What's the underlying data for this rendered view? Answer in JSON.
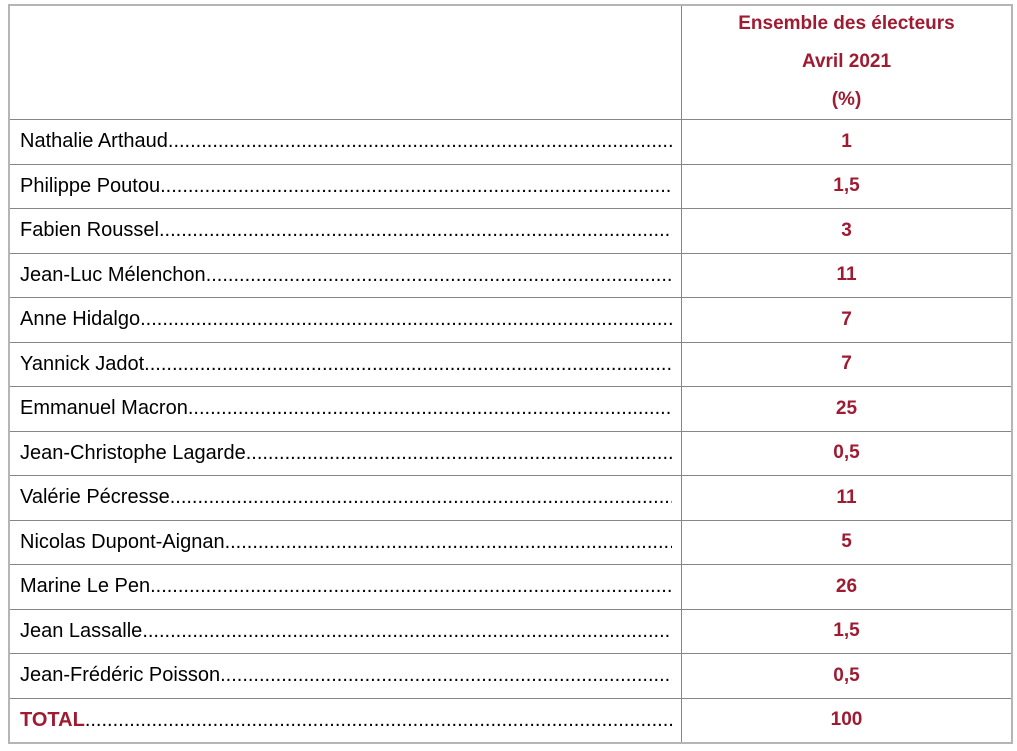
{
  "header": {
    "lines": [
      "Ensemble des électeurs",
      "Avril 2021",
      "(%)"
    ]
  },
  "rows": [
    {
      "name": "Nathalie Arthaud",
      "value": "1"
    },
    {
      "name": "Philippe Poutou",
      "value": "1,5"
    },
    {
      "name": "Fabien Roussel",
      "value": "3"
    },
    {
      "name": "Jean-Luc Mélenchon",
      "value": "11"
    },
    {
      "name": "Anne Hidalgo",
      "value": "7"
    },
    {
      "name": "Yannick Jadot",
      "value": "7"
    },
    {
      "name": "Emmanuel Macron",
      "value": "25"
    },
    {
      "name": "Jean-Christophe Lagarde",
      "value": "0,5"
    },
    {
      "name": "Valérie Pécresse",
      "value": "11"
    },
    {
      "name": "Nicolas Dupont-Aignan",
      "value": "5"
    },
    {
      "name": "Marine Le Pen",
      "value": "26"
    },
    {
      "name": "Jean Lassalle",
      "value": "1,5"
    },
    {
      "name": "Jean-Frédéric Poisson",
      "value": "0,5"
    }
  ],
  "total": {
    "label": "TOTAL",
    "value": "100"
  },
  "colors": {
    "accent_red": "#9E1B32",
    "text_black": "#000000",
    "border_gray": "#868686"
  },
  "chart_data": {
    "type": "table",
    "title": "Ensemble des électeurs Avril 2021 (%)",
    "categories": [
      "Nathalie Arthaud",
      "Philippe Poutou",
      "Fabien Roussel",
      "Jean-Luc Mélenchon",
      "Anne Hidalgo",
      "Yannick Jadot",
      "Emmanuel Macron",
      "Jean-Christophe Lagarde",
      "Valérie Pécresse",
      "Nicolas Dupont-Aignan",
      "Marine Le Pen",
      "Jean Lassalle",
      "Jean-Frédéric Poisson",
      "TOTAL"
    ],
    "values": [
      1,
      1.5,
      3,
      11,
      7,
      7,
      25,
      0.5,
      11,
      5,
      26,
      1.5,
      0.5,
      100
    ]
  }
}
